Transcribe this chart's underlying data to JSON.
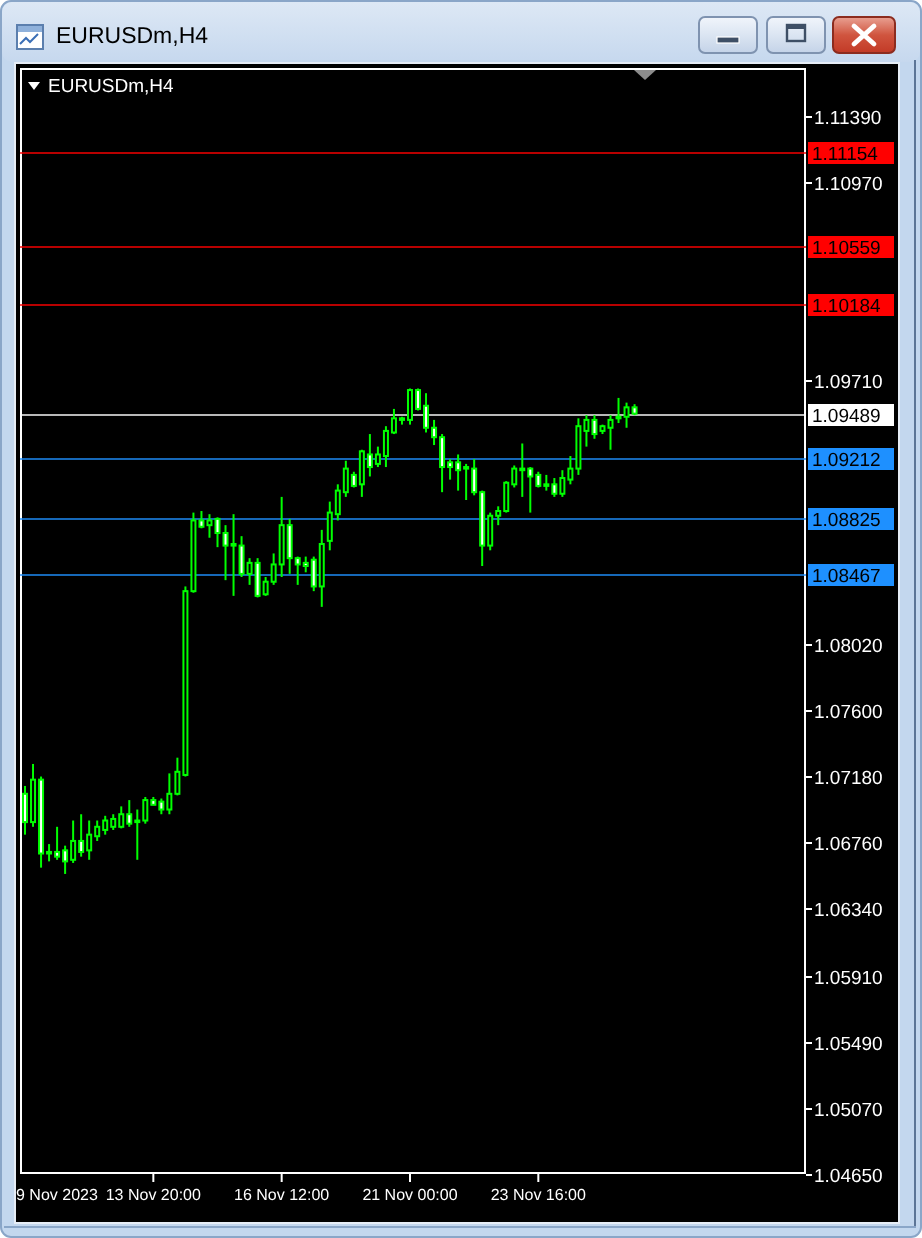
{
  "chart_data": {
    "type": "candlestick",
    "title": "EURUSDm,H4",
    "subtitle": "EURUSDm,H4",
    "categories": [
      null,
      null,
      null,
      null,
      null,
      null,
      null,
      null,
      null,
      null,
      null,
      null,
      null,
      null,
      null,
      null,
      "13 Nov 20:00",
      null,
      null,
      null,
      null,
      null,
      null,
      null,
      null,
      null,
      null,
      null,
      null,
      null,
      null,
      null,
      "16 Nov 12:00",
      null,
      null,
      null,
      null,
      null,
      null,
      null,
      null,
      null,
      null,
      null,
      null,
      null,
      null,
      null,
      "21 Nov 00:00",
      null,
      null,
      null,
      null,
      null,
      null,
      null,
      null,
      null,
      null,
      null,
      null,
      null,
      null,
      null,
      "23 Nov 16:00",
      null,
      null,
      null,
      null,
      null,
      null,
      null,
      null,
      null,
      null,
      null,
      null,
      null,
      null,
      null,
      null,
      null,
      null,
      null,
      null,
      null,
      null,
      null,
      null,
      null,
      null,
      null,
      null,
      null,
      null,
      null,
      null,
      null
    ],
    "annotations": [
      "9 Nov 2023"
    ],
    "ohlc": [
      [
        1.0707,
        1.0712,
        1.0681,
        1.0689
      ],
      [
        1.0689,
        1.0726,
        1.0686,
        1.0716
      ],
      [
        1.0716,
        1.0718,
        1.066,
        1.0669
      ],
      [
        1.0669,
        1.0675,
        1.0664,
        1.067
      ],
      [
        1.067,
        1.0686,
        1.0665,
        1.0667
      ],
      [
        1.0671,
        1.0674,
        1.0656,
        1.0664
      ],
      [
        1.0665,
        1.069,
        1.0663,
        1.0677
      ],
      [
        1.0677,
        1.0694,
        1.0667,
        1.067
      ],
      [
        1.0671,
        1.069,
        1.0665,
        1.0681
      ],
      [
        1.068,
        1.069,
        1.0677,
        1.0686
      ],
      [
        1.0684,
        1.0693,
        1.0681,
        1.069
      ],
      [
        1.0686,
        1.0694,
        1.0684,
        1.0691
      ],
      [
        1.0686,
        1.0699,
        1.0685,
        1.0694
      ],
      [
        1.0694,
        1.0703,
        1.0686,
        1.0688
      ],
      [
        1.0689,
        1.0697,
        1.0665,
        1.069
      ],
      [
        1.069,
        1.0705,
        1.0688,
        1.0703
      ],
      [
        1.0703,
        1.0705,
        1.07,
        1.07
      ],
      [
        1.0702,
        1.0704,
        1.0694,
        1.0697
      ],
      [
        1.0697,
        1.072,
        1.0694,
        1.0707
      ],
      [
        1.0707,
        1.073,
        1.0706,
        1.0721
      ],
      [
        1.0719,
        1.0839,
        1.0718,
        1.0836
      ],
      [
        1.0836,
        1.0886,
        1.0835,
        1.0881
      ],
      [
        1.0881,
        1.0887,
        1.0876,
        1.0877
      ],
      [
        1.0878,
        1.0885,
        1.087,
        1.0881
      ],
      [
        1.0882,
        1.0883,
        1.0864,
        1.0873
      ],
      [
        1.0873,
        1.0878,
        1.0843,
        1.0865
      ],
      [
        1.0865,
        1.0885,
        1.0833,
        1.0866
      ],
      [
        1.0865,
        1.0871,
        1.0845,
        1.0847
      ],
      [
        1.0847,
        1.0857,
        1.084,
        1.0854
      ],
      [
        1.0854,
        1.0857,
        1.0832,
        1.0833
      ],
      [
        1.0834,
        1.0845,
        1.0833,
        1.0842
      ],
      [
        1.0842,
        1.086,
        1.084,
        1.0853
      ],
      [
        1.0853,
        1.0896,
        1.0845,
        1.0878
      ],
      [
        1.0878,
        1.0882,
        1.0847,
        1.0857
      ],
      [
        1.0857,
        1.0858,
        1.084,
        1.0853
      ],
      [
        1.0854,
        1.0858,
        1.0848,
        1.0852
      ],
      [
        1.0856,
        1.0858,
        1.0836,
        1.0839
      ],
      [
        1.0839,
        1.0875,
        1.0826,
        1.0866
      ],
      [
        1.0868,
        1.0893,
        1.0862,
        1.0886
      ],
      [
        1.0885,
        1.0904,
        1.0881,
        1.09
      ],
      [
        1.0899,
        1.0919,
        1.0896,
        1.0914
      ],
      [
        1.091,
        1.0912,
        1.0902,
        1.0903
      ],
      [
        1.0904,
        1.0926,
        1.0896,
        1.0925
      ],
      [
        1.0923,
        1.0936,
        1.0909,
        1.0915
      ],
      [
        1.0917,
        1.0928,
        1.0915,
        1.0923
      ],
      [
        1.0922,
        1.0941,
        1.0915,
        1.0938
      ],
      [
        1.0937,
        1.0952,
        1.0936,
        1.0946
      ],
      [
        1.0945,
        1.0947,
        1.0942,
        1.0946
      ],
      [
        1.0945,
        1.0965,
        1.0942,
        1.0964
      ],
      [
        1.0964,
        1.0965,
        1.0951,
        1.0952
      ],
      [
        1.0954,
        1.0962,
        1.0937,
        1.094
      ],
      [
        1.094,
        1.0945,
        1.0929,
        1.0934
      ],
      [
        1.0934,
        1.0936,
        1.0899,
        1.0915
      ],
      [
        1.0918,
        1.092,
        1.0907,
        1.0915
      ],
      [
        1.0918,
        1.0923,
        1.09,
        1.0913
      ],
      [
        1.0915,
        1.0917,
        1.0894,
        1.0914
      ],
      [
        1.0914,
        1.092,
        1.0897,
        1.0899
      ],
      [
        1.0899,
        1.09,
        1.0852,
        1.0865
      ],
      [
        1.0865,
        1.0886,
        1.0862,
        1.0884
      ],
      [
        1.0884,
        1.089,
        1.0878,
        1.0887
      ],
      [
        1.0887,
        1.0906,
        1.0886,
        1.0905
      ],
      [
        1.0904,
        1.0916,
        1.0902,
        1.0914
      ],
      [
        1.0914,
        1.093,
        1.0896,
        1.0913
      ],
      [
        1.0914,
        1.0915,
        1.0886,
        1.0909
      ],
      [
        1.091,
        1.0912,
        1.0902,
        1.0903
      ],
      [
        1.0904,
        1.091,
        1.09,
        1.0903
      ],
      [
        1.0904,
        1.0908,
        1.0896,
        1.0898
      ],
      [
        1.0898,
        1.0913,
        1.0896,
        1.0908
      ],
      [
        1.0907,
        1.0922,
        1.0904,
        1.0914
      ],
      [
        1.0914,
        1.0946,
        1.091,
        1.0941
      ],
      [
        1.0938,
        1.0948,
        1.0928,
        1.0945
      ],
      [
        1.0945,
        1.0948,
        1.0933,
        1.0936
      ],
      [
        1.0938,
        1.0942,
        1.0936,
        1.0941
      ],
      [
        1.094,
        1.0948,
        1.0926,
        1.0945
      ],
      [
        1.0946,
        1.0959,
        1.0943,
        1.0947
      ],
      [
        1.0947,
        1.0956,
        1.094,
        1.0953
      ],
      [
        1.0953,
        1.0955,
        1.0948,
        1.0949
      ],
      null,
      null,
      null,
      null,
      null,
      null,
      null,
      null,
      null,
      null,
      null,
      null,
      null,
      null,
      null,
      null,
      null,
      null,
      null,
      null,
      null
    ],
    "colors": [
      "#ffffff",
      "#000000",
      "#ffffff",
      "#000000",
      "#ffffff",
      "#ffffff",
      "#000000",
      "#ffffff",
      "#000000",
      "#000000",
      "#000000",
      "#000000",
      "#000000",
      "#ffffff",
      "#000000",
      "#000000",
      "#ffffff",
      "#ffffff",
      "#000000",
      "#000000",
      "#000000",
      "#000000",
      "#ffffff",
      "#000000",
      "#ffffff",
      "#ffffff",
      "#000000",
      "#ffffff",
      "#000000",
      "#ffffff",
      "#000000",
      "#000000",
      "#000000",
      "#ffffff",
      "#ffffff",
      "#ffffff",
      "#ffffff",
      "#000000",
      "#000000",
      "#000000",
      "#000000",
      "#ffffff",
      "#000000",
      "#ffffff",
      "#000000",
      "#000000",
      "#000000",
      "#000000",
      "#000000",
      "#ffffff",
      "#ffffff",
      "#ffffff",
      "#ffffff",
      "#ffffff",
      "#ffffff",
      "#ffffff",
      "#ffffff",
      "#ffffff",
      "#000000",
      "#000000",
      "#000000",
      "#000000",
      "#ffffff",
      "#ffffff",
      "#ffffff",
      "#ffffff",
      "#ffffff",
      "#000000",
      "#000000",
      "#000000",
      "#000000",
      "#ffffff",
      "#000000",
      "#000000",
      "#000000",
      "#000000",
      "#ffffff",
      null,
      null,
      null,
      null,
      null,
      null,
      null,
      null,
      null,
      null,
      null,
      null,
      null,
      null,
      null,
      null,
      null,
      null,
      null,
      null,
      null
    ],
    "color": "#00ff00",
    "ylim": [
      1.0465,
      1.1169
    ],
    "yticks": [
      {
        "value": 1.1139,
        "label": "1.11390"
      },
      {
        "value": 1.1097,
        "label": "1.10970"
      },
      {
        "value": 1.0971,
        "label": "1.09710"
      },
      {
        "value": 1.0802,
        "label": "1.08020"
      },
      {
        "value": 1.076,
        "label": "1.07600"
      },
      {
        "value": 1.0718,
        "label": "1.07180"
      },
      {
        "value": 1.0676,
        "label": "1.06760"
      },
      {
        "value": 1.0634,
        "label": "1.06340"
      },
      {
        "value": 1.0591,
        "label": "1.05910"
      },
      {
        "value": 1.0549,
        "label": "1.05490"
      },
      {
        "value": 1.0507,
        "label": "1.05070"
      },
      {
        "value": 1.0465,
        "label": "1.04650"
      }
    ],
    "ref_lines": [
      {
        "axis": "y",
        "value": 1.11154,
        "label": "1.11154",
        "color": "#ff0000"
      },
      {
        "axis": "y",
        "value": 1.10559,
        "label": "1.10559",
        "color": "#ff0000"
      },
      {
        "axis": "y",
        "value": 1.10184,
        "label": "1.10184",
        "color": "#ff0000"
      },
      {
        "axis": "y",
        "value": 1.09489,
        "label": "1.09489",
        "color": "#ffffff"
      },
      {
        "axis": "y",
        "value": 1.09212,
        "label": "1.09212",
        "color": "#1e90ff"
      },
      {
        "axis": "y",
        "value": 1.08825,
        "label": "1.08825",
        "color": "#1e90ff"
      },
      {
        "axis": "y",
        "value": 1.08467,
        "label": "1.08467",
        "color": "#1e90ff"
      }
    ]
  }
}
